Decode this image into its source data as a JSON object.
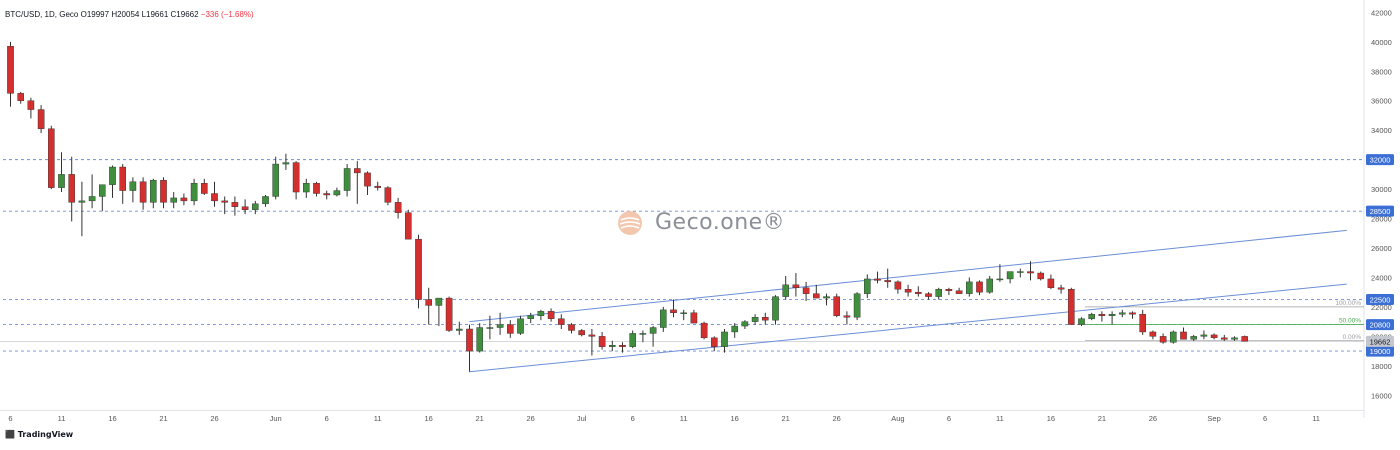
{
  "header": {
    "symbol": "BTC/USD, 1D, Geco",
    "o_label": "O",
    "o_value": "19997",
    "h_label": "H",
    "h_value": "20054",
    "l_label": "L",
    "l_value": "19661",
    "c_label": "C",
    "c_value": "19662",
    "change": "−336 (−1.68%)"
  },
  "brand": {
    "platform": "TradingView",
    "watermark": "Geco.one®"
  },
  "colors": {
    "up": "#3f8f3f",
    "down": "#d32f2f",
    "wick": "#333333",
    "level_line": "#6a8fd8",
    "channel_line": "#6a8fd8",
    "label_bg": "#3b6fd6",
    "fib_green": "#4caf50",
    "fib_grey": "#9e9e9e",
    "axis_text": "#555555"
  },
  "chart_data": {
    "type": "candlestick",
    "symbol": "BTC/USD",
    "timeframe": "1D",
    "y_axis": {
      "range": [
        15000,
        42500
      ],
      "ticks": [
        16000,
        18000,
        20000,
        22000,
        24000,
        26000,
        28000,
        30000,
        32000,
        34000,
        36000,
        38000,
        40000,
        42000
      ]
    },
    "x_axis_ticks": [
      "6",
      "11",
      "16",
      "21",
      "26",
      "Jun",
      "6",
      "11",
      "16",
      "21",
      "26",
      "Jul",
      "6",
      "11",
      "16",
      "21",
      "26",
      "Aug",
      "6",
      "11",
      "16",
      "21",
      "26",
      "Sep",
      "6",
      "11"
    ],
    "x_tick_days": [
      0,
      5,
      10,
      15,
      20,
      26,
      31,
      36,
      41,
      46,
      51,
      56,
      61,
      66,
      71,
      76,
      81,
      87,
      92,
      97,
      102,
      107,
      112,
      118,
      123,
      128
    ],
    "candles": [
      {
        "o": 39700,
        "h": 40000,
        "l": 35600,
        "c": 36500
      },
      {
        "o": 36500,
        "h": 36600,
        "l": 35800,
        "c": 36000
      },
      {
        "o": 36000,
        "h": 36200,
        "l": 34800,
        "c": 35400
      },
      {
        "o": 35400,
        "h": 35700,
        "l": 33800,
        "c": 34100
      },
      {
        "o": 34100,
        "h": 34300,
        "l": 30000,
        "c": 30100
      },
      {
        "o": 30100,
        "h": 32500,
        "l": 29800,
        "c": 31000
      },
      {
        "o": 31000,
        "h": 32200,
        "l": 27800,
        "c": 29100
      },
      {
        "o": 29100,
        "h": 30500,
        "l": 26800,
        "c": 29200
      },
      {
        "o": 29200,
        "h": 31000,
        "l": 28700,
        "c": 29500
      },
      {
        "o": 29500,
        "h": 30300,
        "l": 28500,
        "c": 30300
      },
      {
        "o": 30300,
        "h": 31600,
        "l": 29400,
        "c": 31500
      },
      {
        "o": 31500,
        "h": 31700,
        "l": 29000,
        "c": 29900
      },
      {
        "o": 29900,
        "h": 30800,
        "l": 29100,
        "c": 30500
      },
      {
        "o": 30500,
        "h": 30800,
        "l": 28600,
        "c": 29100
      },
      {
        "o": 29100,
        "h": 30700,
        "l": 28700,
        "c": 30600
      },
      {
        "o": 30600,
        "h": 30800,
        "l": 28700,
        "c": 29100
      },
      {
        "o": 29100,
        "h": 29800,
        "l": 28700,
        "c": 29400
      },
      {
        "o": 29400,
        "h": 29700,
        "l": 28900,
        "c": 29200
      },
      {
        "o": 29200,
        "h": 30700,
        "l": 28900,
        "c": 30400
      },
      {
        "o": 30400,
        "h": 30700,
        "l": 29600,
        "c": 29700
      },
      {
        "o": 29700,
        "h": 30500,
        "l": 28800,
        "c": 29200
      },
      {
        "o": 29200,
        "h": 29500,
        "l": 28300,
        "c": 29100
      },
      {
        "o": 29100,
        "h": 29500,
        "l": 28200,
        "c": 28800
      },
      {
        "o": 28800,
        "h": 29300,
        "l": 28300,
        "c": 28600
      },
      {
        "o": 28600,
        "h": 29200,
        "l": 28300,
        "c": 29000
      },
      {
        "o": 29000,
        "h": 29600,
        "l": 28800,
        "c": 29500
      },
      {
        "o": 29500,
        "h": 32200,
        "l": 29300,
        "c": 31700
      },
      {
        "o": 31700,
        "h": 32400,
        "l": 31300,
        "c": 31800
      },
      {
        "o": 31800,
        "h": 31900,
        "l": 29300,
        "c": 29800
      },
      {
        "o": 29800,
        "h": 30700,
        "l": 29400,
        "c": 30400
      },
      {
        "o": 30400,
        "h": 30500,
        "l": 29500,
        "c": 29700
      },
      {
        "o": 29700,
        "h": 29900,
        "l": 29300,
        "c": 29600
      },
      {
        "o": 29600,
        "h": 30100,
        "l": 29500,
        "c": 29900
      },
      {
        "o": 29900,
        "h": 31700,
        "l": 29500,
        "c": 31400
      },
      {
        "o": 31400,
        "h": 31900,
        "l": 29000,
        "c": 31100
      },
      {
        "o": 31100,
        "h": 31200,
        "l": 29600,
        "c": 30200
      },
      {
        "o": 30200,
        "h": 30500,
        "l": 29900,
        "c": 30100
      },
      {
        "o": 30100,
        "h": 30200,
        "l": 28900,
        "c": 29100
      },
      {
        "o": 29100,
        "h": 29400,
        "l": 28000,
        "c": 28400
      },
      {
        "o": 28400,
        "h": 28600,
        "l": 26600,
        "c": 26600
      },
      {
        "o": 26600,
        "h": 26900,
        "l": 21900,
        "c": 22500
      },
      {
        "o": 22500,
        "h": 23300,
        "l": 20800,
        "c": 22100
      },
      {
        "o": 22100,
        "h": 22600,
        "l": 20700,
        "c": 22600
      },
      {
        "o": 22600,
        "h": 22700,
        "l": 20300,
        "c": 20400
      },
      {
        "o": 20400,
        "h": 21000,
        "l": 20100,
        "c": 20500
      },
      {
        "o": 20500,
        "h": 20800,
        "l": 17600,
        "c": 19000
      },
      {
        "o": 19000,
        "h": 20900,
        "l": 18900,
        "c": 20600
      },
      {
        "o": 20600,
        "h": 21400,
        "l": 19800,
        "c": 20600
      },
      {
        "o": 20600,
        "h": 21600,
        "l": 20100,
        "c": 20800
      },
      {
        "o": 20800,
        "h": 21100,
        "l": 19900,
        "c": 20200
      },
      {
        "o": 20200,
        "h": 21400,
        "l": 20100,
        "c": 21200
      },
      {
        "o": 21200,
        "h": 21600,
        "l": 20900,
        "c": 21400
      },
      {
        "o": 21400,
        "h": 21800,
        "l": 21100,
        "c": 21700
      },
      {
        "o": 21700,
        "h": 21900,
        "l": 21000,
        "c": 21200
      },
      {
        "o": 21200,
        "h": 21500,
        "l": 20500,
        "c": 20800
      },
      {
        "o": 20800,
        "h": 20900,
        "l": 20200,
        "c": 20400
      },
      {
        "o": 20400,
        "h": 20500,
        "l": 20000,
        "c": 20100
      },
      {
        "o": 20100,
        "h": 20500,
        "l": 18700,
        "c": 20000
      },
      {
        "o": 20000,
        "h": 20300,
        "l": 19100,
        "c": 19300
      },
      {
        "o": 19300,
        "h": 19700,
        "l": 19000,
        "c": 19400
      },
      {
        "o": 19400,
        "h": 19600,
        "l": 18900,
        "c": 19300
      },
      {
        "o": 19300,
        "h": 20400,
        "l": 19200,
        "c": 20200
      },
      {
        "o": 20200,
        "h": 20400,
        "l": 19600,
        "c": 20200
      },
      {
        "o": 20200,
        "h": 20700,
        "l": 19300,
        "c": 20600
      },
      {
        "o": 20600,
        "h": 22000,
        "l": 20300,
        "c": 21800
      },
      {
        "o": 21800,
        "h": 22500,
        "l": 21300,
        "c": 21600
      },
      {
        "o": 21600,
        "h": 21800,
        "l": 21100,
        "c": 21600
      },
      {
        "o": 21600,
        "h": 21800,
        "l": 20900,
        "c": 20900
      },
      {
        "o": 20900,
        "h": 21000,
        "l": 19800,
        "c": 19900
      },
      {
        "o": 19900,
        "h": 20000,
        "l": 19000,
        "c": 19300
      },
      {
        "o": 19300,
        "h": 20500,
        "l": 18900,
        "c": 20300
      },
      {
        "o": 20300,
        "h": 20900,
        "l": 19900,
        "c": 20700
      },
      {
        "o": 20700,
        "h": 21100,
        "l": 20500,
        "c": 21000
      },
      {
        "o": 21000,
        "h": 21500,
        "l": 20800,
        "c": 21300
      },
      {
        "o": 21300,
        "h": 21600,
        "l": 20800,
        "c": 21100
      },
      {
        "o": 21100,
        "h": 22800,
        "l": 20800,
        "c": 22700
      },
      {
        "o": 22700,
        "h": 24100,
        "l": 22500,
        "c": 23500
      },
      {
        "o": 23500,
        "h": 24300,
        "l": 22700,
        "c": 23300
      },
      {
        "o": 23300,
        "h": 23700,
        "l": 22400,
        "c": 22900
      },
      {
        "o": 22900,
        "h": 23500,
        "l": 22600,
        "c": 22600
      },
      {
        "o": 22600,
        "h": 22900,
        "l": 22100,
        "c": 22700
      },
      {
        "o": 22700,
        "h": 22900,
        "l": 21300,
        "c": 21400
      },
      {
        "o": 21400,
        "h": 21700,
        "l": 20800,
        "c": 21300
      },
      {
        "o": 21300,
        "h": 23000,
        "l": 21100,
        "c": 22900
      },
      {
        "o": 22900,
        "h": 24200,
        "l": 22600,
        "c": 23900
      },
      {
        "o": 23900,
        "h": 24400,
        "l": 23600,
        "c": 23800
      },
      {
        "o": 23800,
        "h": 24600,
        "l": 23300,
        "c": 23700
      },
      {
        "o": 23700,
        "h": 23800,
        "l": 22900,
        "c": 23200
      },
      {
        "o": 23200,
        "h": 23500,
        "l": 22700,
        "c": 23000
      },
      {
        "o": 23000,
        "h": 23400,
        "l": 22700,
        "c": 22900
      },
      {
        "o": 22900,
        "h": 23000,
        "l": 22500,
        "c": 22700
      },
      {
        "o": 22700,
        "h": 23300,
        "l": 22500,
        "c": 23200
      },
      {
        "o": 23200,
        "h": 23300,
        "l": 22800,
        "c": 23100
      },
      {
        "o": 23100,
        "h": 23300,
        "l": 22900,
        "c": 22900
      },
      {
        "o": 22900,
        "h": 24000,
        "l": 22700,
        "c": 23700
      },
      {
        "o": 23700,
        "h": 23800,
        "l": 22800,
        "c": 23000
      },
      {
        "o": 23000,
        "h": 24100,
        "l": 22900,
        "c": 23900
      },
      {
        "o": 23900,
        "h": 24900,
        "l": 23700,
        "c": 23900
      },
      {
        "o": 23900,
        "h": 24300,
        "l": 23600,
        "c": 24400
      },
      {
        "o": 24400,
        "h": 24600,
        "l": 24000,
        "c": 24400
      },
      {
        "o": 24400,
        "h": 25100,
        "l": 23800,
        "c": 24300
      },
      {
        "o": 24300,
        "h": 24400,
        "l": 23800,
        "c": 23900
      },
      {
        "o": 23900,
        "h": 24200,
        "l": 23200,
        "c": 23300
      },
      {
        "o": 23300,
        "h": 23500,
        "l": 22900,
        "c": 23200
      },
      {
        "o": 23200,
        "h": 23300,
        "l": 20800,
        "c": 20800
      },
      {
        "o": 20800,
        "h": 21300,
        "l": 20700,
        "c": 21200
      },
      {
        "o": 21200,
        "h": 21600,
        "l": 21100,
        "c": 21500
      },
      {
        "o": 21500,
        "h": 21700,
        "l": 21000,
        "c": 21400
      },
      {
        "o": 21400,
        "h": 21700,
        "l": 20800,
        "c": 21500
      },
      {
        "o": 21500,
        "h": 21800,
        "l": 21300,
        "c": 21600
      },
      {
        "o": 21600,
        "h": 21700,
        "l": 21200,
        "c": 21500
      },
      {
        "o": 21500,
        "h": 21800,
        "l": 20100,
        "c": 20300
      },
      {
        "o": 20300,
        "h": 20400,
        "l": 19800,
        "c": 20000
      },
      {
        "o": 20000,
        "h": 20200,
        "l": 19500,
        "c": 19600
      },
      {
        "o": 19600,
        "h": 20400,
        "l": 19500,
        "c": 20300
      },
      {
        "o": 20300,
        "h": 20600,
        "l": 19800,
        "c": 19800
      },
      {
        "o": 19800,
        "h": 20100,
        "l": 19700,
        "c": 20000
      },
      {
        "o": 20000,
        "h": 20400,
        "l": 19800,
        "c": 20100
      },
      {
        "o": 20100,
        "h": 20200,
        "l": 19800,
        "c": 19900
      },
      {
        "o": 19900,
        "h": 20100,
        "l": 19700,
        "c": 19800
      },
      {
        "o": 19800,
        "h": 20000,
        "l": 19700,
        "c": 19900
      },
      {
        "o": 19997,
        "h": 20054,
        "l": 19661,
        "c": 19662
      }
    ],
    "horizontal_levels": [
      {
        "value": 32000,
        "label": "32000"
      },
      {
        "value": 28500,
        "label": "28500"
      },
      {
        "value": 22500,
        "label": "22500"
      },
      {
        "value": 20800,
        "label": "20800"
      },
      {
        "value": 19000,
        "label": "19000"
      }
    ],
    "current_price": {
      "value": 19662,
      "label": "19662"
    },
    "fib_levels": [
      {
        "value": 22000,
        "label": "100.00%"
      },
      {
        "value": 20800,
        "label": "50.00%"
      },
      {
        "value": 19700,
        "label": "0.00%"
      }
    ],
    "channel_lines": [
      {
        "start_day": 45,
        "start_price": 17600,
        "end_day": 131,
        "end_price": 23550
      },
      {
        "start_day": 45,
        "start_price": 21000,
        "end_day": 131,
        "end_price": 27200
      }
    ]
  }
}
